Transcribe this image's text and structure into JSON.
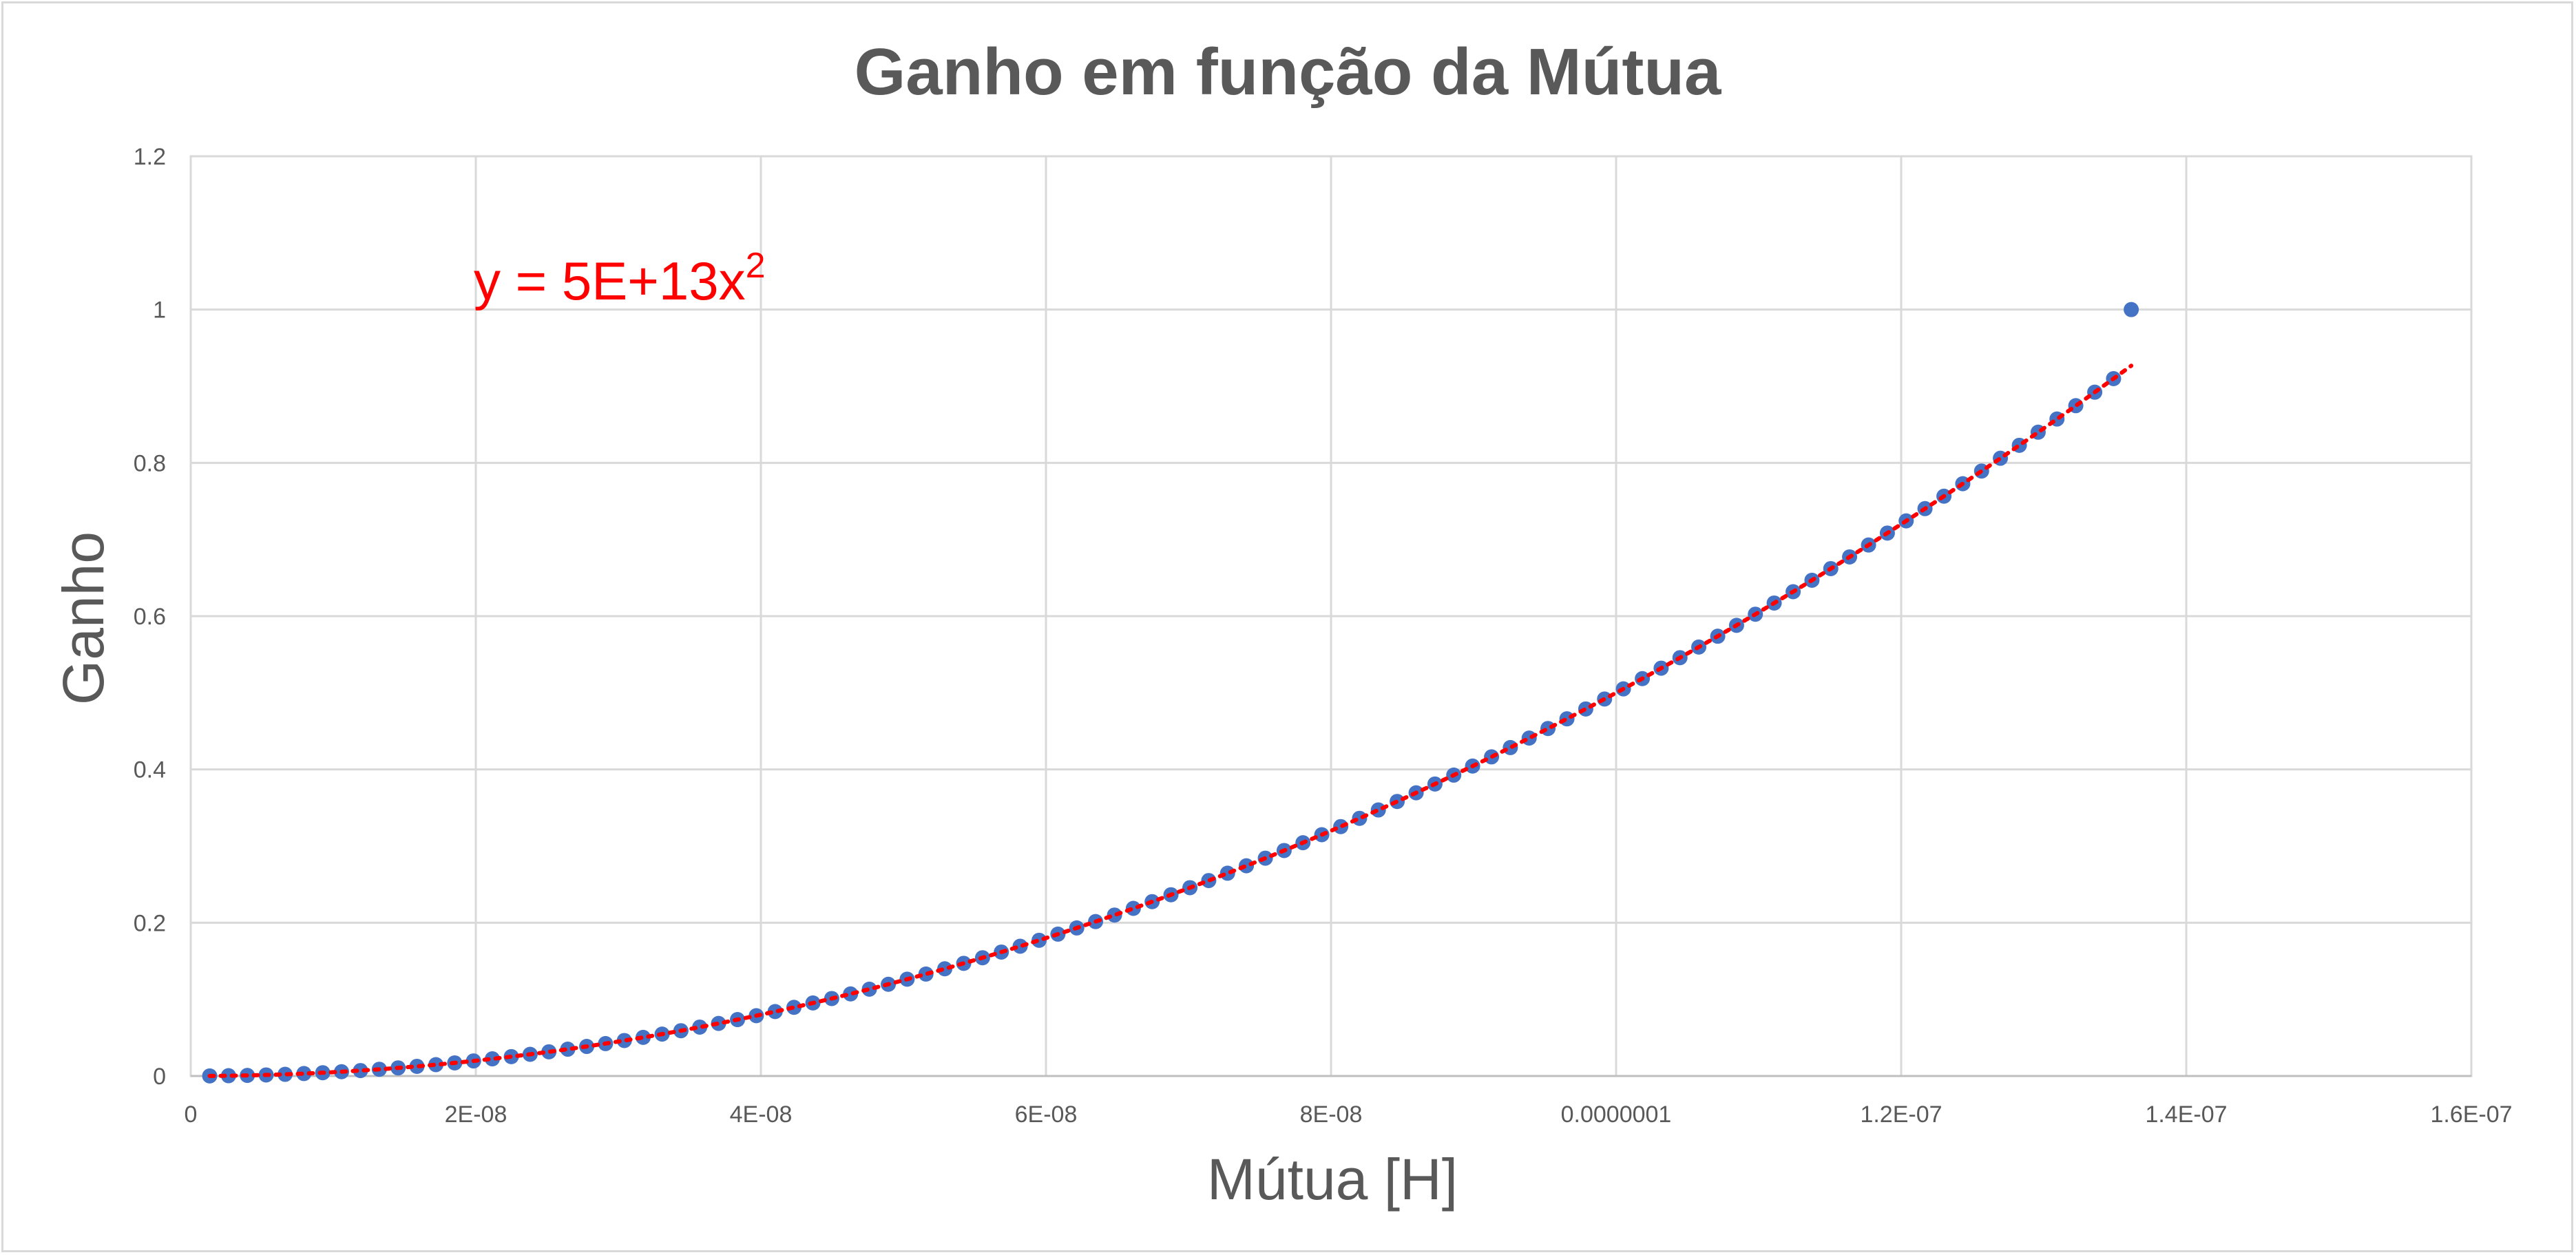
{
  "chart_data": {
    "type": "scatter",
    "title": "Ganho em função da Mútua",
    "xlabel": "Mútua [H]",
    "ylabel": "Ganho",
    "xlim": [
      0,
      1.6e-07
    ],
    "ylim": [
      0,
      1.2
    ],
    "x_ticks": [
      {
        "value": 0,
        "label": "0"
      },
      {
        "value": 2e-08,
        "label": "2E-08"
      },
      {
        "value": 4e-08,
        "label": "4E-08"
      },
      {
        "value": 6e-08,
        "label": "6E-08"
      },
      {
        "value": 8e-08,
        "label": "8E-08"
      },
      {
        "value": 1e-07,
        "label": "0.0000001"
      },
      {
        "value": 1.2e-07,
        "label": "1.2E-07"
      },
      {
        "value": 1.4e-07,
        "label": "1.4E-07"
      },
      {
        "value": 1.6e-07,
        "label": "1.6E-07"
      }
    ],
    "y_ticks": [
      {
        "value": 0,
        "label": "0"
      },
      {
        "value": 0.2,
        "label": "0.2"
      },
      {
        "value": 0.4,
        "label": "0.4"
      },
      {
        "value": 0.6,
        "label": "0.6"
      },
      {
        "value": 0.8,
        "label": "0.8"
      },
      {
        "value": 1,
        "label": "1"
      },
      {
        "value": 1.2,
        "label": "1.2"
      }
    ],
    "grid": true,
    "legend": "none",
    "series": [
      {
        "marker_color": "#4472c4",
        "x_start": 1.33e-09,
        "x_end": 1.3614e-07,
        "point_count": 103,
        "x": [
          1.33e-09,
          2.65e-09,
          3.97e-09,
          5.29e-09,
          6.62e-09,
          7.94e-09,
          9.26e-09,
          1.058e-08,
          1.191e-08,
          1.323e-08,
          1.455e-08,
          1.587e-08,
          1.72e-08,
          1.852e-08,
          1.984e-08,
          2.116e-08,
          2.249e-08,
          2.381e-08,
          2.513e-08,
          2.645e-08,
          2.778e-08,
          2.91e-08,
          3.042e-08,
          3.174e-08,
          3.307e-08,
          3.439e-08,
          3.571e-08,
          3.703e-08,
          3.836e-08,
          3.968e-08,
          4.1e-08,
          4.232e-08,
          4.365e-08,
          4.497e-08,
          4.629e-08,
          4.761e-08,
          4.894e-08,
          5.026e-08,
          5.158e-08,
          5.29e-08,
          5.423e-08,
          5.555e-08,
          5.687e-08,
          5.819e-08,
          5.952e-08,
          6.084e-08,
          6.216e-08,
          6.348e-08,
          6.481e-08,
          6.613e-08,
          6.745e-08,
          6.877e-08,
          7.01e-08,
          7.142e-08,
          7.274e-08,
          7.406e-08,
          7.539e-08,
          7.671e-08,
          7.803e-08,
          7.935e-08,
          8.068e-08,
          8.2e-08,
          8.332e-08,
          8.464e-08,
          8.597e-08,
          8.729e-08,
          8.861e-08,
          8.993e-08,
          9.126e-08,
          9.258e-08,
          9.39e-08,
          9.522e-08,
          9.655e-08,
          9.787e-08,
          9.919e-08,
          1.0051e-07,
          1.0184e-07,
          1.0316e-07,
          1.0448e-07,
          1.058e-07,
          1.0713e-07,
          1.0845e-07,
          1.0977e-07,
          1.1109e-07,
          1.1242e-07,
          1.1374e-07,
          1.1506e-07,
          1.1638e-07,
          1.1771e-07,
          1.1903e-07,
          1.2035e-07,
          1.2167e-07,
          1.23e-07,
          1.2432e-07,
          1.2564e-07,
          1.2696e-07,
          1.2829e-07,
          1.2961e-07,
          1.3093e-07,
          1.3225e-07,
          1.3358e-07,
          1.349e-07,
          1.3614e-07
        ],
        "y": [
          0.0001,
          0.0004,
          0.0008,
          0.0014,
          0.0022,
          0.0032,
          0.0043,
          0.0056,
          0.0071,
          0.0088,
          0.0106,
          0.0126,
          0.0148,
          0.0171,
          0.0197,
          0.0224,
          0.0253,
          0.0283,
          0.0316,
          0.035,
          0.0386,
          0.0423,
          0.0463,
          0.0504,
          0.0547,
          0.0591,
          0.0638,
          0.0686,
          0.0736,
          0.0787,
          0.0841,
          0.0896,
          0.0953,
          0.1011,
          0.1071,
          0.1133,
          0.1197,
          0.1263,
          0.133,
          0.1399,
          0.147,
          0.1543,
          0.1617,
          0.1693,
          0.1771,
          0.1851,
          0.1932,
          0.2015,
          0.21,
          0.2187,
          0.2275,
          0.2365,
          0.2457,
          0.255,
          0.2646,
          0.2743,
          0.2842,
          0.2942,
          0.3044,
          0.3148,
          0.3254,
          0.3362,
          0.3471,
          0.3582,
          0.3695,
          0.381,
          0.3926,
          0.4044,
          0.4164,
          0.4285,
          0.4409,
          0.4534,
          0.466,
          0.4789,
          0.4919,
          0.5051,
          0.5185,
          0.5321,
          0.5458,
          0.5597,
          0.5738,
          0.588,
          0.6025,
          0.6171,
          0.6319,
          0.6468,
          0.662,
          0.6773,
          0.6928,
          0.7084,
          0.7243,
          0.7403,
          0.7565,
          0.7728,
          0.7893,
          0.806,
          0.8229,
          0.84,
          0.8572,
          0.8746,
          0.8922,
          0.9099,
          1.0
        ]
      }
    ],
    "trendline": {
      "type": "polynomial",
      "color": "#ff0000",
      "style": "dotted",
      "coefficient": 50000000000000.0,
      "equation_base": "y = 5E+13x",
      "equation_exponent": "2"
    }
  }
}
